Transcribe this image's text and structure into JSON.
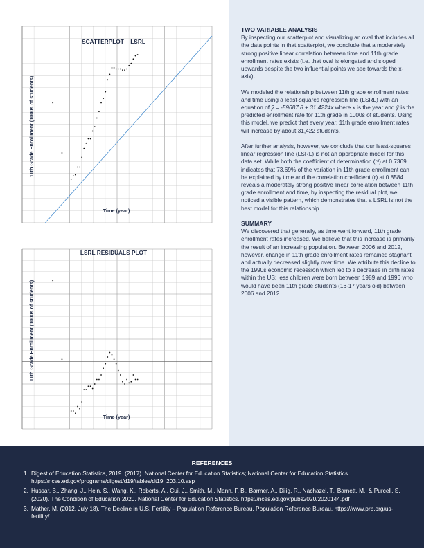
{
  "analysis": {
    "heading": "TWO VARIABLE ANALYSIS",
    "p1": "By inspecting our scatterplot and visualizing an oval that includes all the data points in that scatterplot, we conclude that a moderately strong positive linear correlation between time and 11th grade enrollment rates exists (i.e. that oval is elongated and sloped upwards despite the two influential points we see towards the x-axis).",
    "p2_a": "We modeled the relationship between 11th grade enrollment rates and time using a least-squares regression line (LSRL) with an equation of ",
    "p2_eq": "ŷ = -59687.8 + 31.4224x",
    "p2_b": " where ",
    "p2_x": "x",
    "p2_c": " is the year and ",
    "p2_y": "ŷ",
    "p2_d": " is the predicted enrollment rate for 11th grade in 1000s of students. Using this model, we predict that every year, 11th grade enrollment rates will increase by about 31,422 students.",
    "p3": "After further analysis, however, we conclude that our least-squares linear regression line (LSRL) is not an appropriate model for this data set. While both the coefficient of determination (r²) at 0.7369 indicates that 73.69% of the variation in 11th grade enrollment can be explained by time and the correlation coefficient (r) at 0.8584 reveals a moderately strong positive linear correlation between 11th grade enrollment and time, by inspecting the residual plot, we noticed a visible pattern, which demonstrates that a LSRL is not the best model for this relationship."
  },
  "summary": {
    "heading": "SUMMARY",
    "text": "We discovered that generally, as time went forward, 11th grade enrollment rates increased. We believe that this increase is primarily the result of an increasing population. Between 2006 and 2012, however, change in 11th grade enrollment rates remained stagnant and actually decreased slightly over time. We attribute this decline to the 1990s economic recession which led to a decrease in birth rates within the US: less children were born between 1989 and 1996 who would have been 11th grade students (16-17 years old) between 2006 and 2012."
  },
  "references": {
    "title": "REFERENCES",
    "items": [
      {
        "num": "1.",
        "text": "Digest of Education Statistics, 2019. (2017). National Center for Education Statistics; National Center for Education Statistics. https://nces.ed.gov/programs/digest/d19/tables/dt19_203.10.asp"
      },
      {
        "num": "2.",
        "text": "Hussar, B., Zhang, J., Hein, S., Wang, K., Roberts, A., Cui, J., Smith, M., Mann, F. B., Barmer, A., Dilig, R., Nachazel, T., Barnett, M., & Purcell, S. (2020). The Condition of Education 2020. National Center for Education Statistics. https://nces.ed.gov/pubs2020/2020144.pdf"
      },
      {
        "num": "3.",
        "text": "Mather, M. (2012, July 18). The Decline in U.S. Fertility – Population Reference Bureau. Population Reference Bureau. https://www.prb.org/us-fertility/"
      }
    ]
  },
  "colors": {
    "navy": "#1f2a44",
    "panel": "#e4ebf4",
    "line": "#4a8fd0",
    "grid": "#c4c4c4",
    "gridMajor": "#9a9a9a"
  },
  "chart_data": [
    {
      "type": "scatter",
      "title": "SCATTERPLOT + LSRL",
      "xlabel": "Time (year)",
      "ylabel": "11th Grade Enrollment (1000s of students)",
      "xlim": [
        1962,
        2024
      ],
      "ylim": [
        2200,
        4000
      ],
      "fit": {
        "intercept": -59687.8,
        "slope": 31.4224
      },
      "points": [
        {
          "x": 1972,
          "y": 3300
        },
        {
          "x": 1975,
          "y": 2840
        },
        {
          "x": 1978,
          "y": 2600
        },
        {
          "x": 1978.7,
          "y": 2630
        },
        {
          "x": 1979.4,
          "y": 2640
        },
        {
          "x": 1980.1,
          "y": 2710
        },
        {
          "x": 1980.8,
          "y": 2710
        },
        {
          "x": 1981.5,
          "y": 2800
        },
        {
          "x": 1982.2,
          "y": 2880
        },
        {
          "x": 1982.9,
          "y": 2930
        },
        {
          "x": 1983.6,
          "y": 2970
        },
        {
          "x": 1984.3,
          "y": 2970
        },
        {
          "x": 1985,
          "y": 3040
        },
        {
          "x": 1985.7,
          "y": 3080
        },
        {
          "x": 1986.4,
          "y": 3160
        },
        {
          "x": 1987.1,
          "y": 3220
        },
        {
          "x": 1987.8,
          "y": 3300
        },
        {
          "x": 1988.5,
          "y": 3340
        },
        {
          "x": 1989.2,
          "y": 3400
        },
        {
          "x": 1989.9,
          "y": 3510
        },
        {
          "x": 1990.6,
          "y": 3560
        },
        {
          "x": 1991.3,
          "y": 3620
        },
        {
          "x": 1992,
          "y": 3620
        },
        {
          "x": 1992.7,
          "y": 3610
        },
        {
          "x": 1993.4,
          "y": 3610
        },
        {
          "x": 1994.1,
          "y": 3610
        },
        {
          "x": 1994.8,
          "y": 3600
        },
        {
          "x": 1995.5,
          "y": 3600
        },
        {
          "x": 1996.2,
          "y": 3610
        },
        {
          "x": 1996.9,
          "y": 3640
        },
        {
          "x": 1997.6,
          "y": 3660
        },
        {
          "x": 1998.3,
          "y": 3700
        },
        {
          "x": 1999,
          "y": 3730
        },
        {
          "x": 1999.7,
          "y": 3740
        }
      ]
    },
    {
      "type": "scatter",
      "title": "LSRL RESIDUALS PLOT",
      "xlabel": "Time (year)",
      "ylabel": "11th Grade Enrollment (1000s of students)",
      "xlim": [
        1962,
        2024
      ],
      "ylim": [
        -300,
        500
      ],
      "points": [
        {
          "x": 1972,
          "y": 360
        },
        {
          "x": 1975,
          "y": 10
        },
        {
          "x": 1978,
          "y": -220
        },
        {
          "x": 1978.7,
          "y": -220
        },
        {
          "x": 1979.4,
          "y": -230
        },
        {
          "x": 1980.1,
          "y": -200
        },
        {
          "x": 1980.8,
          "y": -210
        },
        {
          "x": 1981.5,
          "y": -180
        },
        {
          "x": 1982.2,
          "y": -125
        },
        {
          "x": 1982.9,
          "y": -125
        },
        {
          "x": 1983.6,
          "y": -110
        },
        {
          "x": 1984.3,
          "y": -110
        },
        {
          "x": 1985,
          "y": -120
        },
        {
          "x": 1985.7,
          "y": -100
        },
        {
          "x": 1986.4,
          "y": -80
        },
        {
          "x": 1987.1,
          "y": -80
        },
        {
          "x": 1987.8,
          "y": -60
        },
        {
          "x": 1988.5,
          "y": -30
        },
        {
          "x": 1989.2,
          "y": -10
        },
        {
          "x": 1989.9,
          "y": 20
        },
        {
          "x": 1990.6,
          "y": 40
        },
        {
          "x": 1991.3,
          "y": 30
        },
        {
          "x": 1992,
          "y": 10
        },
        {
          "x": 1992.7,
          "y": -10
        },
        {
          "x": 1993.4,
          "y": -40
        },
        {
          "x": 1994.1,
          "y": -60
        },
        {
          "x": 1994.8,
          "y": -90
        },
        {
          "x": 1995.5,
          "y": -100
        },
        {
          "x": 1996.2,
          "y": -80
        },
        {
          "x": 1996.9,
          "y": -95
        },
        {
          "x": 1997.6,
          "y": -90
        },
        {
          "x": 1998.3,
          "y": -60
        },
        {
          "x": 1999,
          "y": -80
        },
        {
          "x": 1999.7,
          "y": -80
        }
      ]
    }
  ]
}
